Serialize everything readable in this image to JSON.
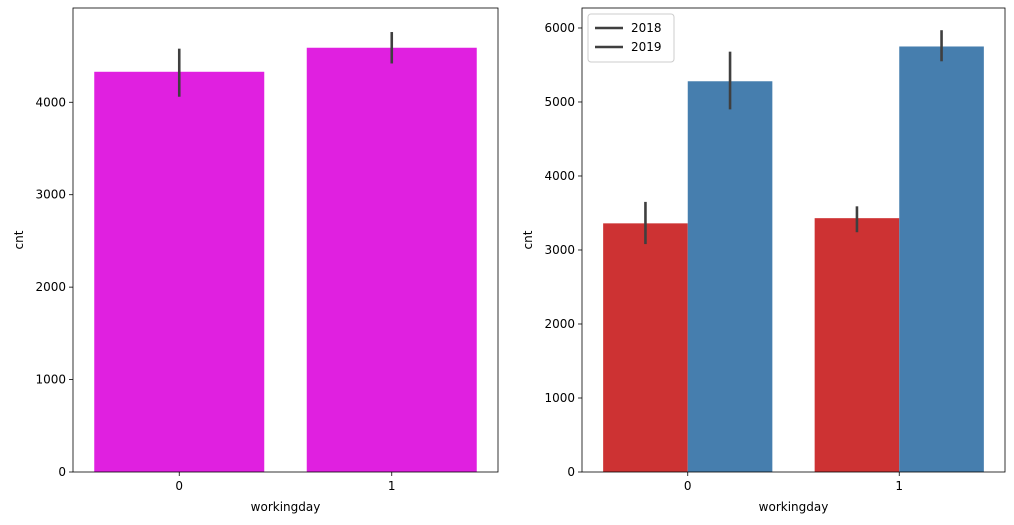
{
  "chart_data": [
    {
      "type": "bar",
      "categories": [
        "0",
        "1"
      ],
      "series": [
        {
          "values": [
            4330,
            4590
          ],
          "error": [
            [
              4060,
              4580
            ],
            [
              4420,
              4760
            ]
          ],
          "color": "#e020e0"
        }
      ],
      "xlabel": "workingday",
      "ylabel": "cnt",
      "ylim": [
        0,
        5020
      ],
      "yticks": [
        0,
        1000,
        2000,
        3000,
        4000
      ],
      "grid": false,
      "error_color": "#3f3f3f"
    },
    {
      "type": "bar",
      "categories": [
        "0",
        "1"
      ],
      "series": [
        {
          "name": "2018",
          "values": [
            3360,
            3430
          ],
          "error": [
            [
              3080,
              3650
            ],
            [
              3240,
              3590
            ]
          ],
          "color": "#cd3233"
        },
        {
          "name": "2019",
          "values": [
            5280,
            5750
          ],
          "error": [
            [
              4900,
              5680
            ],
            [
              5550,
              5970
            ]
          ],
          "color": "#467eae"
        }
      ],
      "xlabel": "workingday",
      "ylabel": "cnt",
      "ylim": [
        0,
        6270
      ],
      "yticks": [
        0,
        1000,
        2000,
        3000,
        4000,
        5000,
        6000
      ],
      "grid": false,
      "legend": "top-left",
      "error_color": "#3f3f3f"
    }
  ]
}
